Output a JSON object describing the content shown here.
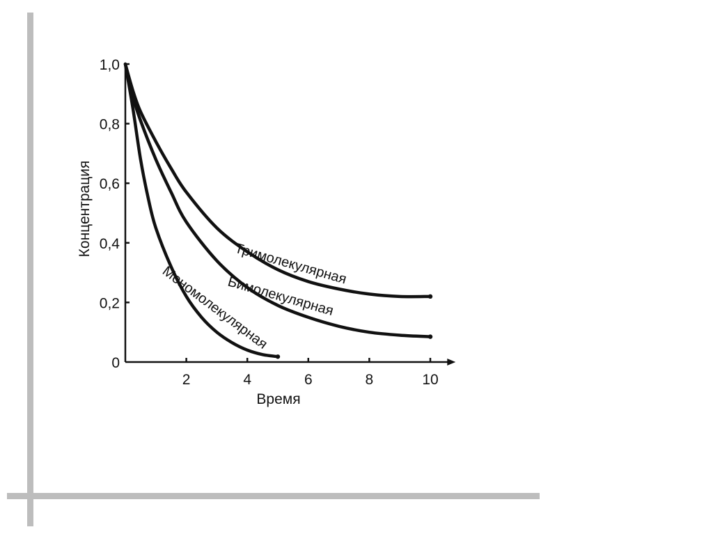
{
  "slide": {
    "frame_color": "#bdbdbd"
  },
  "chart_data": {
    "type": "line",
    "xlabel": "Время",
    "ylabel": "Концентрация",
    "xlim": [
      0,
      10.6
    ],
    "ylim": [
      0,
      1.0
    ],
    "x_ticks": [
      {
        "value": 2,
        "label": "2"
      },
      {
        "value": 4,
        "label": "4"
      },
      {
        "value": 6,
        "label": "6"
      },
      {
        "value": 8,
        "label": "8"
      },
      {
        "value": 10,
        "label": "10"
      }
    ],
    "y_ticks": [
      {
        "value": 0,
        "label": "0"
      },
      {
        "value": 0.2,
        "label": "0,2"
      },
      {
        "value": 0.4,
        "label": "0,4"
      },
      {
        "value": 0.6,
        "label": "0,6"
      },
      {
        "value": 0.8,
        "label": "0,8"
      },
      {
        "value": 1.0,
        "label": "1,0"
      }
    ],
    "grid": false,
    "legend": "none",
    "series": [
      {
        "name": "Тримолекулярная",
        "x": [
          0,
          0.25,
          0.5,
          1,
          1.5,
          2,
          3,
          4,
          5,
          6,
          7,
          8,
          9,
          10
        ],
        "y": [
          1.0,
          0.91,
          0.84,
          0.74,
          0.65,
          0.57,
          0.45,
          0.37,
          0.31,
          0.27,
          0.245,
          0.228,
          0.22,
          0.22
        ]
      },
      {
        "name": "Бимолекулярная",
        "x": [
          0,
          0.25,
          0.5,
          1,
          1.5,
          2,
          3,
          4,
          5,
          6,
          7,
          8,
          9,
          10
        ],
        "y": [
          1.0,
          0.89,
          0.81,
          0.68,
          0.57,
          0.47,
          0.34,
          0.25,
          0.19,
          0.15,
          0.12,
          0.1,
          0.09,
          0.085
        ]
      },
      {
        "name": "Мономолекулярная",
        "x": [
          0,
          0.25,
          0.5,
          0.75,
          1,
          1.5,
          2,
          2.5,
          3,
          3.5,
          4,
          4.5,
          5
        ],
        "y": [
          1.0,
          0.85,
          0.68,
          0.55,
          0.45,
          0.32,
          0.22,
          0.15,
          0.1,
          0.065,
          0.04,
          0.025,
          0.018
        ]
      }
    ]
  }
}
